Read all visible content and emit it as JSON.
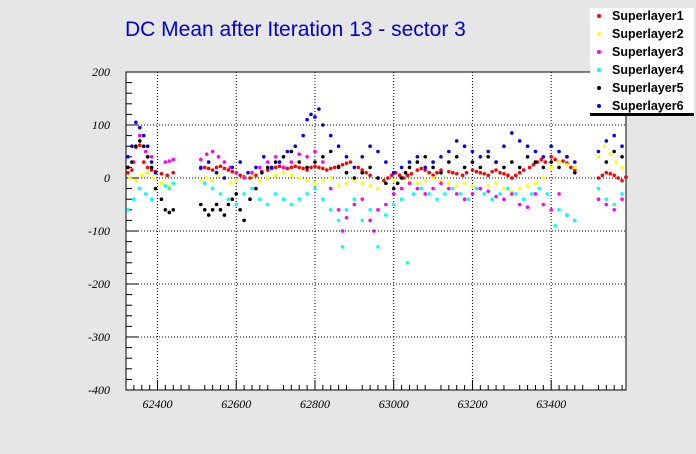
{
  "chart_data": {
    "type": "scatter",
    "title": "DC Mean after Iteration 13 - sector 3",
    "xlabel": "",
    "ylabel": "",
    "xlim": [
      62320,
      63590
    ],
    "ylim": [
      -400,
      200
    ],
    "x_ticks": [
      "62400",
      "62600",
      "62800",
      "63000",
      "63200",
      "63400"
    ],
    "y_ticks": [
      "200",
      "100",
      "0",
      "-100",
      "-200",
      "-300",
      "-400"
    ],
    "grid": true,
    "legend_position": "top-right",
    "series": [
      {
        "name": "Superlayer1",
        "color": "#ff0000",
        "x": [
          62325,
          62335,
          62345,
          62355,
          62365,
          62375,
          62385,
          62395,
          62410,
          62425,
          62440,
          62510,
          62520,
          62530,
          62540,
          62550,
          62560,
          62570,
          62580,
          62590,
          62600,
          62610,
          62620,
          62635,
          62650,
          62665,
          62680,
          62690,
          62700,
          62710,
          62720,
          62730,
          62740,
          62750,
          62760,
          62770,
          62780,
          62790,
          62800,
          62810,
          62820,
          62830,
          62840,
          62850,
          62860,
          62870,
          62880,
          62890,
          62910,
          62920,
          62930,
          62940,
          62960,
          62975,
          62985,
          62995,
          63005,
          63015,
          63025,
          63035,
          63045,
          63060,
          63070,
          63080,
          63090,
          63100,
          63110,
          63120,
          63140,
          63150,
          63160,
          63175,
          63185,
          63200,
          63210,
          63220,
          63230,
          63240,
          63250,
          63260,
          63270,
          63280,
          63290,
          63300,
          63310,
          63320,
          63330,
          63345,
          63355,
          63365,
          63375,
          63385,
          63400,
          63410,
          63420,
          63430,
          63440,
          63450,
          63460,
          63520,
          63530,
          63540,
          63550,
          63560,
          63570,
          63580,
          63590
        ],
        "y": [
          10,
          15,
          58,
          62,
          30,
          20,
          15,
          12,
          8,
          5,
          10,
          18,
          20,
          18,
          15,
          20,
          22,
          18,
          15,
          12,
          10,
          5,
          2,
          0,
          5,
          12,
          15,
          18,
          20,
          22,
          20,
          18,
          20,
          22,
          20,
          18,
          15,
          20,
          22,
          20,
          18,
          15,
          18,
          20,
          22,
          25,
          28,
          30,
          20,
          15,
          10,
          5,
          0,
          -5,
          0,
          5,
          10,
          5,
          0,
          5,
          8,
          15,
          18,
          15,
          10,
          5,
          10,
          15,
          12,
          10,
          8,
          5,
          10,
          15,
          12,
          10,
          8,
          5,
          12,
          15,
          10,
          8,
          5,
          0,
          5,
          10,
          15,
          20,
          25,
          30,
          35,
          30,
          40,
          35,
          30,
          32,
          28,
          20,
          15,
          0,
          5,
          10,
          8,
          5,
          0,
          -5,
          2
        ]
      },
      {
        "name": "Superlayer2",
        "color": "#ffff00",
        "x": [
          62330,
          62345,
          62360,
          62375,
          62390,
          62410,
          62430,
          62510,
          62525,
          62540,
          62555,
          62570,
          62585,
          62600,
          62620,
          62640,
          62660,
          62680,
          62700,
          62720,
          62740,
          62760,
          62780,
          62800,
          62820,
          62840,
          62860,
          62880,
          62900,
          62920,
          62940,
          62960,
          62980,
          63000,
          63020,
          63040,
          63060,
          63080,
          63100,
          63120,
          63140,
          63160,
          63180,
          63200,
          63220,
          63240,
          63260,
          63280,
          63300,
          63320,
          63340,
          63360,
          63380,
          63400,
          63420,
          63440,
          63460,
          63520,
          63535,
          63550,
          63565,
          63580
        ],
        "y": [
          0,
          -5,
          5,
          10,
          0,
          -10,
          -15,
          -5,
          0,
          -5,
          5,
          0,
          -10,
          -5,
          0,
          5,
          -5,
          0,
          5,
          10,
          5,
          0,
          -5,
          -10,
          -5,
          0,
          -15,
          -10,
          -5,
          -10,
          -15,
          -20,
          -10,
          -5,
          0,
          -5,
          -10,
          -5,
          0,
          -5,
          -10,
          -15,
          -10,
          -15,
          -20,
          -15,
          -10,
          -20,
          -25,
          -20,
          -15,
          -10,
          0,
          20,
          30,
          25,
          20,
          40,
          60,
          45,
          30,
          20
        ]
      },
      {
        "name": "Superlayer3",
        "color": "#ff00ff",
        "x": [
          62325,
          62340,
          62355,
          62370,
          62385,
          62420,
          62430,
          62440,
          62510,
          62525,
          62540,
          62555,
          62570,
          62585,
          62600,
          62620,
          62640,
          62660,
          62680,
          62700,
          62720,
          62740,
          62760,
          62780,
          62800,
          62820,
          62840,
          62860,
          62870,
          62880,
          62900,
          62920,
          62940,
          62950,
          62960,
          62980,
          63000,
          63020,
          63040,
          63060,
          63080,
          63100,
          63120,
          63140,
          63160,
          63180,
          63200,
          63220,
          63240,
          63260,
          63280,
          63300,
          63320,
          63340,
          63360,
          63380,
          63400,
          63420,
          63440,
          63460,
          63520,
          63540,
          63560,
          63580
        ],
        "y": [
          20,
          30,
          80,
          50,
          40,
          30,
          32,
          35,
          35,
          45,
          50,
          40,
          30,
          20,
          10,
          0,
          10,
          20,
          30,
          40,
          20,
          30,
          45,
          40,
          50,
          30,
          -20,
          -60,
          -100,
          -75,
          -50,
          -40,
          -80,
          -100,
          -60,
          -50,
          -30,
          -20,
          -10,
          -20,
          -30,
          -20,
          -10,
          -20,
          -30,
          -40,
          -30,
          -20,
          -25,
          -35,
          -40,
          -30,
          -50,
          -55,
          -30,
          -50,
          -60,
          -30,
          -70,
          -80,
          -40,
          -50,
          -60,
          -40
        ]
      },
      {
        "name": "Superlayer4",
        "color": "#00ffff",
        "x": [
          62325,
          62340,
          62355,
          62370,
          62385,
          62420,
          62430,
          62440,
          62520,
          62540,
          62560,
          62580,
          62600,
          62620,
          62640,
          62660,
          62680,
          62700,
          62720,
          62740,
          62760,
          62780,
          62800,
          62820,
          62840,
          62860,
          62870,
          62880,
          62900,
          62920,
          62940,
          62960,
          62980,
          63000,
          63020,
          63035,
          63050,
          63070,
          63090,
          63110,
          63130,
          63150,
          63170,
          63190,
          63210,
          63230,
          63250,
          63270,
          63290,
          63310,
          63330,
          63350,
          63370,
          63390,
          63410,
          63420,
          63440,
          63460,
          63520,
          63540,
          63560,
          63580
        ],
        "y": [
          -60,
          -40,
          -20,
          -30,
          -40,
          -15,
          -20,
          -10,
          -10,
          -20,
          -30,
          -40,
          -50,
          -30,
          -20,
          -40,
          -50,
          -30,
          -40,
          -50,
          -40,
          -30,
          -20,
          -40,
          -60,
          -80,
          -130,
          -60,
          -40,
          -80,
          -60,
          -130,
          -70,
          -50,
          -40,
          -160,
          -30,
          -20,
          -30,
          -40,
          -30,
          -20,
          -30,
          -40,
          -20,
          -30,
          -40,
          -30,
          -20,
          -30,
          -40,
          -30,
          -20,
          -30,
          -90,
          -60,
          -70,
          -80,
          -20,
          -40,
          -50,
          -30
        ]
      },
      {
        "name": "Superlayer5",
        "color": "#000000",
        "x": [
          62325,
          62335,
          62345,
          62355,
          62365,
          62375,
          62385,
          62395,
          62410,
          62420,
          62430,
          62440,
          62510,
          62520,
          62530,
          62540,
          62550,
          62560,
          62570,
          62580,
          62590,
          62600,
          62610,
          62620,
          62635,
          62650,
          62665,
          62680,
          62700,
          62720,
          62740,
          62760,
          62780,
          62800,
          62820,
          62840,
          62860,
          62880,
          62900,
          62920,
          62940,
          62960,
          62980,
          63000,
          63010,
          63020,
          63030,
          63040,
          63060,
          63080,
          63100,
          63120,
          63140,
          63160,
          63180,
          63200,
          63220,
          63240,
          63260,
          63280,
          63300,
          63320,
          63340,
          63360,
          63380,
          63400,
          63420,
          63440,
          63460,
          63540,
          63560,
          63580
        ],
        "y": [
          20,
          30,
          60,
          70,
          60,
          40,
          20,
          -20,
          -40,
          -60,
          -65,
          -60,
          -50,
          -60,
          -70,
          -60,
          -50,
          -60,
          -70,
          -50,
          -40,
          -30,
          -60,
          -80,
          -40,
          -20,
          10,
          20,
          30,
          40,
          50,
          30,
          20,
          30,
          40,
          50,
          20,
          10,
          0,
          10,
          20,
          0,
          -10,
          -20,
          -10,
          0,
          10,
          20,
          30,
          40,
          20,
          10,
          30,
          40,
          20,
          30,
          20,
          40,
          30,
          20,
          30,
          20,
          40,
          30,
          20,
          30,
          20,
          40,
          10,
          30,
          50,
          40
        ]
      },
      {
        "name": "Superlayer6",
        "color": "#0000ff",
        "x": [
          62325,
          62335,
          62345,
          62355,
          62365,
          62375,
          62385,
          62395,
          62510,
          62530,
          62550,
          62570,
          62590,
          62610,
          62630,
          62650,
          62670,
          62690,
          62710,
          62730,
          62750,
          62770,
          62780,
          62790,
          62800,
          62810,
          62820,
          62840,
          62860,
          62880,
          62900,
          62920,
          62940,
          62960,
          62980,
          63000,
          63020,
          63040,
          63060,
          63080,
          63100,
          63120,
          63140,
          63160,
          63180,
          63200,
          63220,
          63240,
          63260,
          63280,
          63300,
          63320,
          63340,
          63360,
          63380,
          63400,
          63420,
          63440,
          63460,
          63520,
          63540,
          63560,
          63580
        ],
        "y": [
          40,
          60,
          105,
          95,
          80,
          60,
          30,
          10,
          20,
          30,
          10,
          0,
          20,
          30,
          10,
          20,
          40,
          20,
          30,
          50,
          60,
          80,
          110,
          120,
          115,
          130,
          100,
          80,
          60,
          40,
          20,
          40,
          60,
          50,
          30,
          10,
          20,
          30,
          40,
          20,
          30,
          40,
          50,
          70,
          60,
          50,
          40,
          50,
          30,
          60,
          85,
          70,
          60,
          50,
          40,
          60,
          50,
          40,
          30,
          50,
          70,
          80,
          60
        ]
      }
    ]
  }
}
